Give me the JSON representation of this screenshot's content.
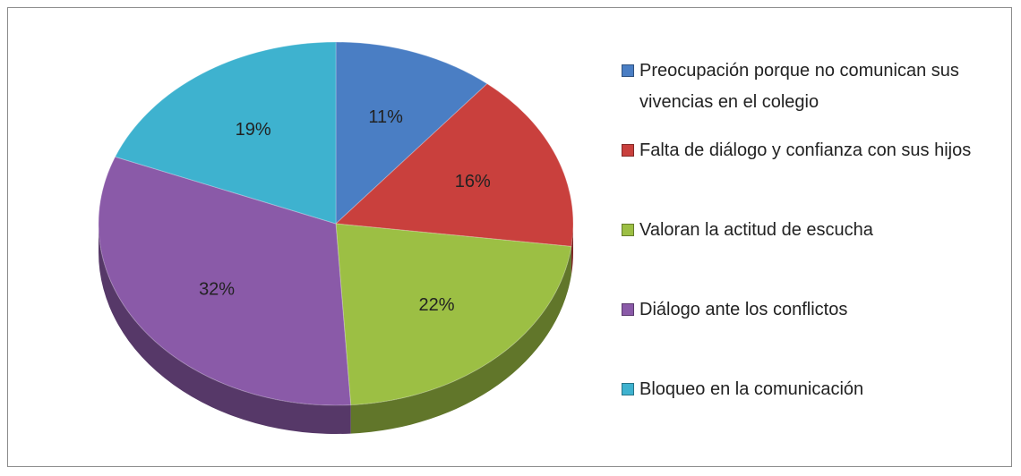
{
  "chart_data": {
    "type": "pie",
    "categories": [
      "Preocupación porque no comunican sus vivencias en el colegio",
      "Falta de  diálogo y confianza  con sus hijos",
      "Valoran  la actitud de escucha",
      "Diálogo ante  los conflictos",
      "Bloqueo en la comunicación"
    ],
    "values": [
      11,
      16,
      22,
      32,
      19
    ],
    "value_labels": [
      "11%",
      "16%",
      "22%",
      "32%",
      "19%"
    ],
    "colors": [
      "#4a7ec4",
      "#c9403d",
      "#9cbf44",
      "#8a5aa8",
      "#3eb2cf"
    ],
    "legend": "right"
  }
}
